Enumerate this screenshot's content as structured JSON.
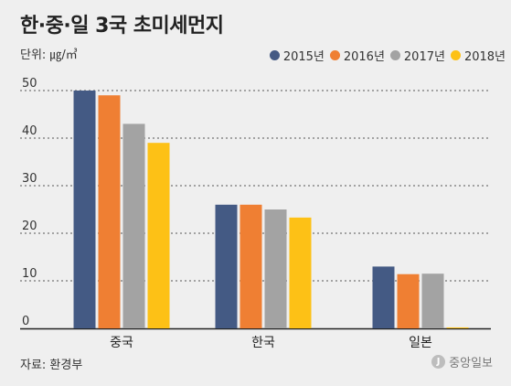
{
  "title": "한·중·일 3국 초미세먼지",
  "unit_label": "단위: ㎍/㎥",
  "source": "자료: 환경부",
  "brand": "중앙일보",
  "brand_logo_glyph": "J",
  "colors": {
    "2015년": "#445a84",
    "2016년": "#ef7f33",
    "2017년": "#a3a3a3",
    "2018년": "#fdc116"
  },
  "chart_data": {
    "type": "bar",
    "title": "한·중·일 3국 초미세먼지",
    "ylabel": "단위: ㎍/㎥",
    "xlabel": "",
    "categories": [
      "중국",
      "한국",
      "일본"
    ],
    "ylim": [
      0,
      50
    ],
    "yticks": [
      0,
      10,
      20,
      30,
      40,
      50
    ],
    "grid": true,
    "legend_position": "top-right",
    "series": [
      {
        "name": "2015년",
        "color": "#445a84",
        "values": [
          50,
          26,
          13
        ]
      },
      {
        "name": "2016년",
        "color": "#ef7f33",
        "values": [
          49,
          26,
          11.4
        ]
      },
      {
        "name": "2017년",
        "color": "#a3a3a3",
        "values": [
          43,
          25,
          11.5
        ]
      },
      {
        "name": "2018년",
        "color": "#fdc116",
        "values": [
          39,
          23.3,
          0.2
        ]
      }
    ]
  }
}
